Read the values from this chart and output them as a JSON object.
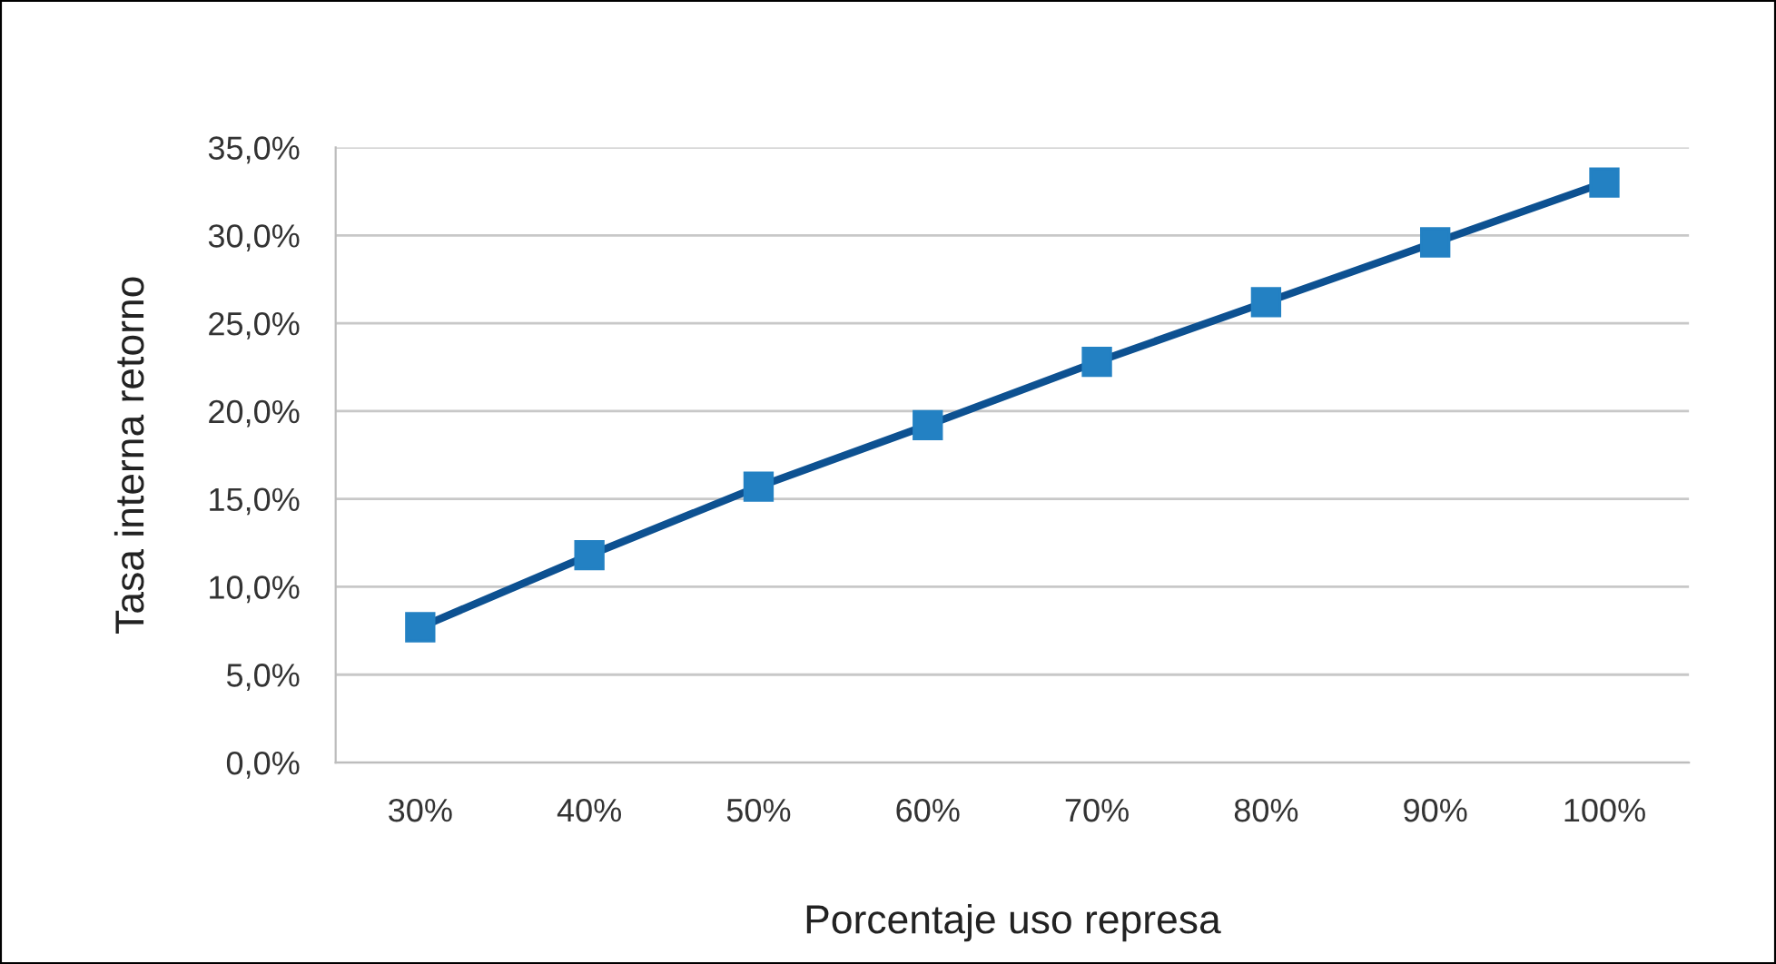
{
  "chart_data": {
    "type": "line",
    "xlabel": "Porcentaje uso represa",
    "ylabel": "Tasa interna retorno",
    "categories": [
      "30%",
      "40%",
      "50%",
      "60%",
      "70%",
      "80%",
      "90%",
      "100%"
    ],
    "series": [
      {
        "color": "#0d5191",
        "values": [
          7.7,
          11.8,
          15.7,
          19.2,
          22.8,
          26.2,
          29.6,
          33.0
        ]
      }
    ],
    "marker": "square",
    "line_style": "solid",
    "grid": "y",
    "legend": false,
    "ylim": [
      0,
      35
    ],
    "yticks": [
      {
        "value": 0,
        "label": "0,0%"
      },
      {
        "value": 5,
        "label": "5,0%"
      },
      {
        "value": 10,
        "label": "10,0%"
      },
      {
        "value": 15,
        "label": "15,0%"
      },
      {
        "value": 20,
        "label": "20,0%"
      },
      {
        "value": 25,
        "label": "25,0%"
      },
      {
        "value": 30,
        "label": "30,0%"
      },
      {
        "value": 35,
        "label": "35,0%"
      }
    ]
  }
}
